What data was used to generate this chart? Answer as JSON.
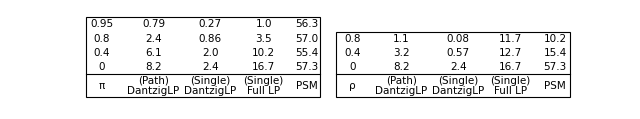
{
  "table1": {
    "header_row1": [
      "π",
      "DantzigLP",
      "DantzigLP",
      "Full LP",
      "PSM"
    ],
    "header_row2": [
      "",
      "(Path)",
      "(Single)",
      "(Single)",
      ""
    ],
    "rows": [
      [
        "0",
        "8.2",
        "2.4",
        "16.7",
        "57.3"
      ],
      [
        "0.4",
        "6.1",
        "2.0",
        "10.2",
        "55.4"
      ],
      [
        "0.8",
        "2.4",
        "0.86",
        "3.5",
        "57.0"
      ],
      [
        "0.95",
        "0.79",
        "0.27",
        "1.0",
        "56.3"
      ]
    ]
  },
  "table2": {
    "header_row1": [
      "ρ",
      "DantzigLP",
      "DantzigLP",
      "Full LP",
      "PSM"
    ],
    "header_row2": [
      "",
      "(Path)",
      "(Single)",
      "(Single)",
      ""
    ],
    "rows": [
      [
        "0",
        "8.2",
        "2.4",
        "16.7",
        "57.3"
      ],
      [
        "0.4",
        "3.2",
        "0.57",
        "12.7",
        "15.4"
      ],
      [
        "0.8",
        "1.1",
        "0.08",
        "11.7",
        "10.2"
      ]
    ]
  },
  "background_color": "#ffffff",
  "text_color": "#000000",
  "font_size": 7.5
}
